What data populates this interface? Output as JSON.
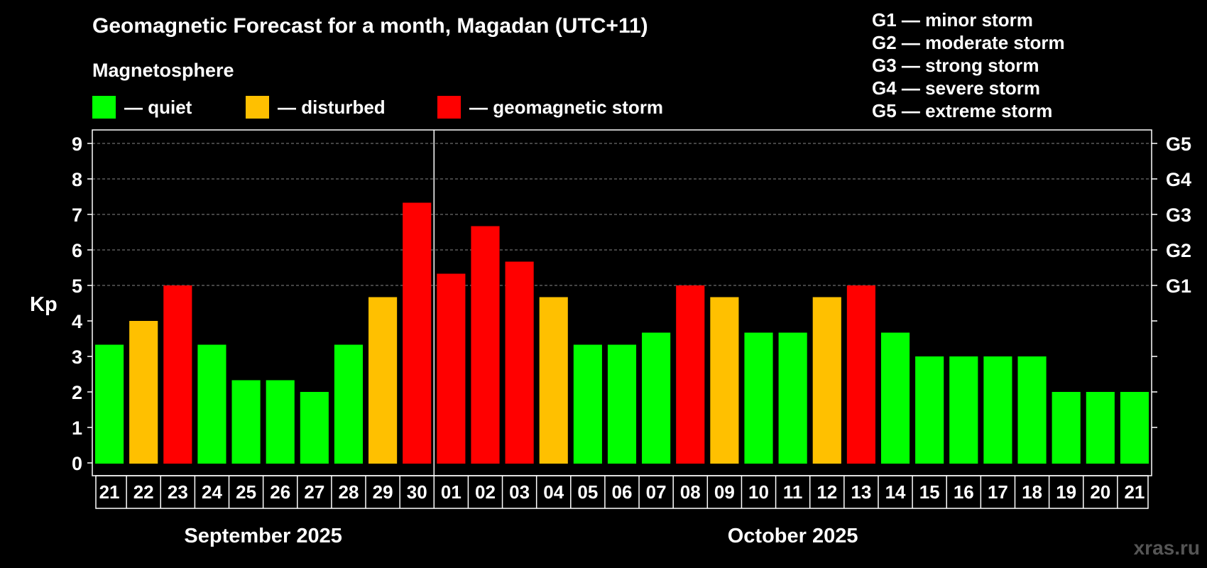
{
  "header": {
    "title": "Geomagnetic Forecast for a month, Magadan (UTC+11)",
    "subtitle": "Magnetosphere"
  },
  "legend": [
    {
      "label": "— quiet",
      "color": "#00ff00"
    },
    {
      "label": "— disturbed",
      "color": "#ffc000"
    },
    {
      "label": "— geomagnetic storm",
      "color": "#ff0000"
    }
  ],
  "g_scale": [
    "G1 — minor storm",
    "G2 — moderate storm",
    "G3 — strong storm",
    "G4 — severe storm",
    "G5 — extreme storm"
  ],
  "watermark": "xras.ru",
  "chart_data": {
    "type": "bar",
    "ylabel": "Kp",
    "ylim": [
      0,
      9
    ],
    "yticks": [
      0,
      1,
      2,
      3,
      4,
      5,
      6,
      7,
      8,
      9
    ],
    "right_axis": [
      {
        "value": 5,
        "label": "G1"
      },
      {
        "value": 6,
        "label": "G2"
      },
      {
        "value": 7,
        "label": "G3"
      },
      {
        "value": 8,
        "label": "G4"
      },
      {
        "value": 9,
        "label": "G5"
      }
    ],
    "grid": "horizontal dashed",
    "categories": [
      "21",
      "22",
      "23",
      "24",
      "25",
      "26",
      "27",
      "28",
      "29",
      "30",
      "01",
      "02",
      "03",
      "04",
      "05",
      "06",
      "07",
      "08",
      "09",
      "10",
      "11",
      "12",
      "13",
      "14",
      "15",
      "16",
      "17",
      "18",
      "19",
      "20",
      "21"
    ],
    "values": [
      3.33,
      4,
      5,
      3.33,
      2.33,
      2.33,
      2,
      3.33,
      4.67,
      7.33,
      5.33,
      6.67,
      5.67,
      4.67,
      3.33,
      3.33,
      3.67,
      5,
      4.67,
      3.67,
      3.67,
      4.67,
      5,
      3.67,
      3,
      3,
      3,
      3,
      2,
      2,
      2
    ],
    "levels": [
      "quiet",
      "disturbed",
      "storm",
      "quiet",
      "quiet",
      "quiet",
      "quiet",
      "quiet",
      "disturbed",
      "storm",
      "storm",
      "storm",
      "storm",
      "disturbed",
      "quiet",
      "quiet",
      "quiet",
      "storm",
      "disturbed",
      "quiet",
      "quiet",
      "disturbed",
      "storm",
      "quiet",
      "quiet",
      "quiet",
      "quiet",
      "quiet",
      "quiet",
      "quiet",
      "quiet"
    ],
    "level_colors": {
      "quiet": "#00ff00",
      "disturbed": "#ffc000",
      "storm": "#ff0000"
    },
    "months": [
      {
        "label": "September 2025",
        "start": 0,
        "count": 10
      },
      {
        "label": "October 2025",
        "start": 10,
        "count": 21
      }
    ]
  }
}
